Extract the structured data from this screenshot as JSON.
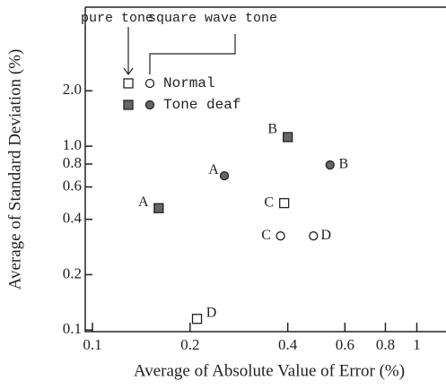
{
  "chart_data": {
    "type": "scatter",
    "xlabel": "Average of Absolute Value of Error (%)",
    "ylabel": "Average of Standard Deviation (%)",
    "xscale": "log",
    "yscale": "log",
    "xlim": [
      0.095,
      1.23
    ],
    "ylim": [
      0.098,
      5.7
    ],
    "xticks": [
      0.1,
      0.2,
      0.4,
      0.6,
      0.8,
      1
    ],
    "yticks": [
      0.1,
      0.2,
      0.4,
      0.6,
      0.8,
      {
        "value": 1,
        "label": "1.0"
      },
      {
        "value": 2,
        "label": "2.0"
      }
    ],
    "marker_names": [
      "pure tone",
      "square wave tone"
    ],
    "groups": [
      {
        "name": "Normal",
        "color": "#222",
        "filled": false,
        "series": [
          {
            "marker": "square",
            "x": [
              0.39,
              0.21
            ],
            "values": [
              0.49,
              0.115
            ],
            "labels": [
              "C",
              "D"
            ]
          },
          {
            "marker": "circle",
            "x": [
              0.38,
              0.48
            ],
            "values": [
              0.325,
              0.325
            ],
            "labels": [
              "C",
              "D"
            ]
          }
        ]
      },
      {
        "name": "Tone deaf",
        "color": "#666",
        "filled": true,
        "series": [
          {
            "marker": "square",
            "x": [
              0.16,
              0.4
            ],
            "values": [
              0.46,
              1.12
            ],
            "labels": [
              "A",
              "B"
            ]
          },
          {
            "marker": "circle",
            "x": [
              0.255,
              0.54
            ],
            "values": [
              0.69,
              0.79
            ],
            "labels": [
              "A",
              "B"
            ]
          }
        ]
      }
    ]
  }
}
